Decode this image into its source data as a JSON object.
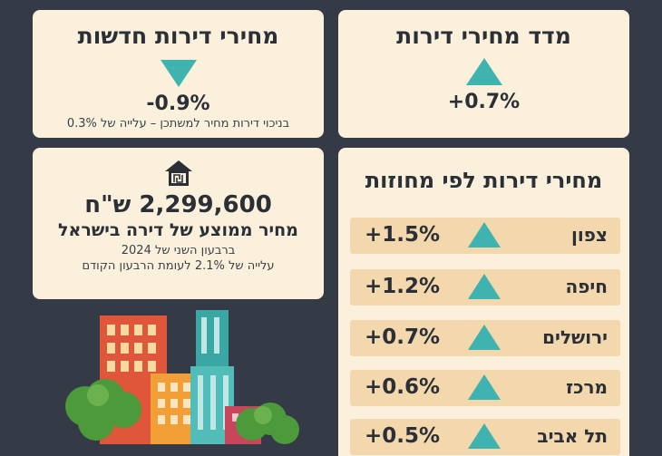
{
  "index_card": {
    "title": "מדד מחירי דירות",
    "change": "+0.7%",
    "arrow_icon": "triangle-up-icon"
  },
  "new_card": {
    "title": "מחירי דירות חדשות",
    "change": "-0.9%",
    "note": "בניכוי דירות מחיר למשתכן – עלייה של 0.3%",
    "arrow_icon": "triangle-down-icon"
  },
  "avg_card": {
    "icon": "shekel-house-icon",
    "price": "2,299,600 ש\"ח",
    "subtitle": "מחיר ממוצע של דירה בישראל",
    "period": "ברבעון השני של 2024",
    "change_note": "עלייה של 2.1% לעומת הרבעון הקודם"
  },
  "districts": {
    "title": "מחירי דירות לפי מחוזות",
    "rows": [
      {
        "name": "צפון",
        "change": "+1.5%"
      },
      {
        "name": "חיפה",
        "change": "+1.2%"
      },
      {
        "name": "ירושלים",
        "change": "+0.7%"
      },
      {
        "name": "מרכז",
        "change": "+0.6%"
      },
      {
        "name": "תל אביב",
        "change": "+0.5%"
      }
    ]
  },
  "colors": {
    "background": "#343b46",
    "card": "#fbf0dc",
    "accent": "#3fb3b0",
    "row": "#f3d7ad"
  }
}
